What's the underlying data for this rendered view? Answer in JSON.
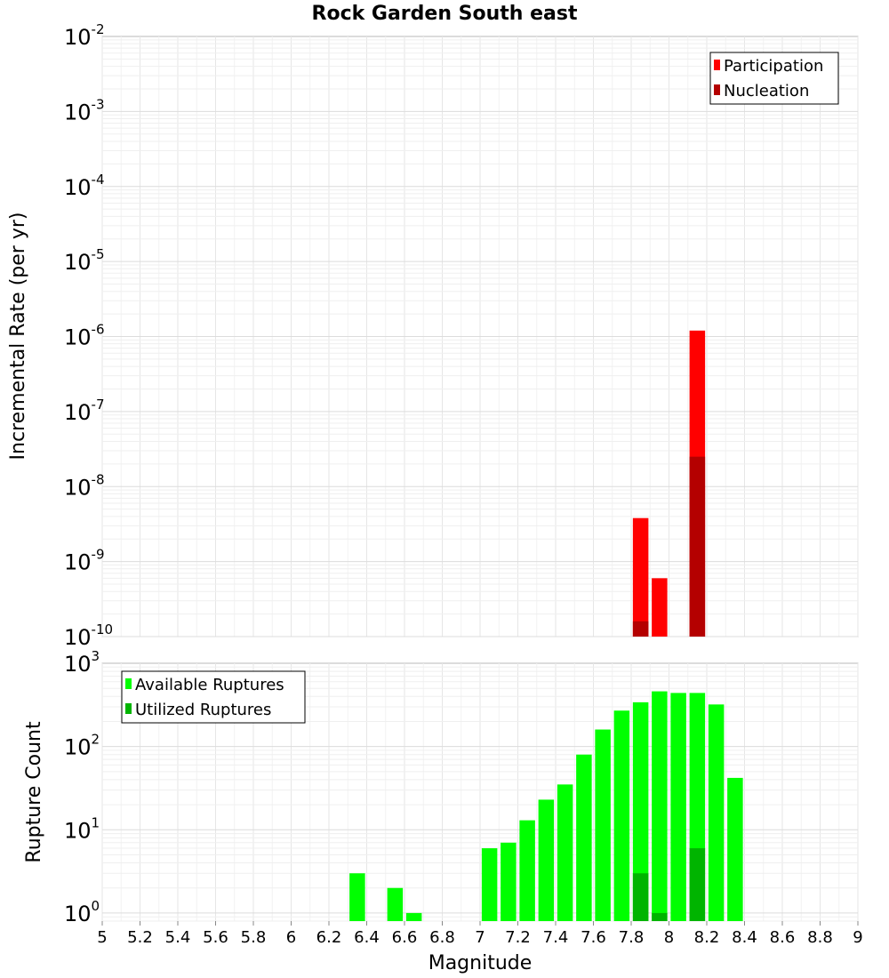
{
  "chart_data": [
    {
      "type": "bar",
      "title": "Rock Garden South east",
      "ylabel": "Incremental Rate (per yr)",
      "yscale": "log",
      "ylim": [
        1e-10,
        0.01
      ],
      "xlim": [
        5,
        9
      ],
      "y_ticks": [
        {
          "base": "10",
          "exp": "-2"
        },
        {
          "base": "10",
          "exp": "-3"
        },
        {
          "base": "10",
          "exp": "-4"
        },
        {
          "base": "10",
          "exp": "-5"
        },
        {
          "base": "10",
          "exp": "-6"
        },
        {
          "base": "10",
          "exp": "-7"
        },
        {
          "base": "10",
          "exp": "-8"
        },
        {
          "base": "10",
          "exp": "-9"
        },
        {
          "base": "10",
          "exp": "-10"
        }
      ],
      "grid": true,
      "legend_position": "top-right",
      "legend": [
        "Participation",
        "Nucleation"
      ],
      "series": [
        {
          "name": "Participation",
          "color": "#ff0000",
          "x": [
            7.85,
            7.95,
            8.15
          ],
          "values": [
            3.8e-09,
            6e-10,
            1.2e-06
          ]
        },
        {
          "name": "Nucleation",
          "color": "#b40000",
          "x": [
            7.85,
            8.15
          ],
          "values": [
            1.6e-10,
            2.5e-08
          ]
        }
      ]
    },
    {
      "type": "bar",
      "ylabel": "Rupture Count",
      "xlabel": "Magnitude",
      "yscale": "log",
      "ylim": [
        0.8,
        1000
      ],
      "xlim": [
        5,
        9
      ],
      "y_ticks": [
        {
          "base": "10",
          "exp": "3"
        },
        {
          "base": "10",
          "exp": "2"
        },
        {
          "base": "10",
          "exp": "1"
        },
        {
          "base": "10",
          "exp": "0"
        }
      ],
      "x_ticks": [
        "5",
        "5.2",
        "5.4",
        "5.6",
        "5.8",
        "6",
        "6.2",
        "6.4",
        "6.6",
        "6.8",
        "7",
        "7.2",
        "7.4",
        "7.6",
        "7.8",
        "8",
        "8.2",
        "8.4",
        "8.6",
        "8.8",
        "9"
      ],
      "grid": true,
      "legend_position": "top-left",
      "legend": [
        "Available Ruptures",
        "Utilized Ruptures"
      ],
      "series": [
        {
          "name": "Available Ruptures",
          "color": "#00ff00",
          "x": [
            6.35,
            6.55,
            6.65,
            7.05,
            7.15,
            7.25,
            7.35,
            7.45,
            7.55,
            7.65,
            7.75,
            7.85,
            7.95,
            8.05,
            8.15,
            8.25,
            8.35
          ],
          "values": [
            3,
            2,
            1,
            6,
            7,
            13,
            23,
            35,
            80,
            160,
            270,
            340,
            460,
            440,
            440,
            320,
            42
          ]
        },
        {
          "name": "Utilized Ruptures",
          "color": "#00b400",
          "x": [
            7.85,
            7.95,
            8.15
          ],
          "values": [
            3,
            1,
            6
          ]
        }
      ]
    }
  ]
}
